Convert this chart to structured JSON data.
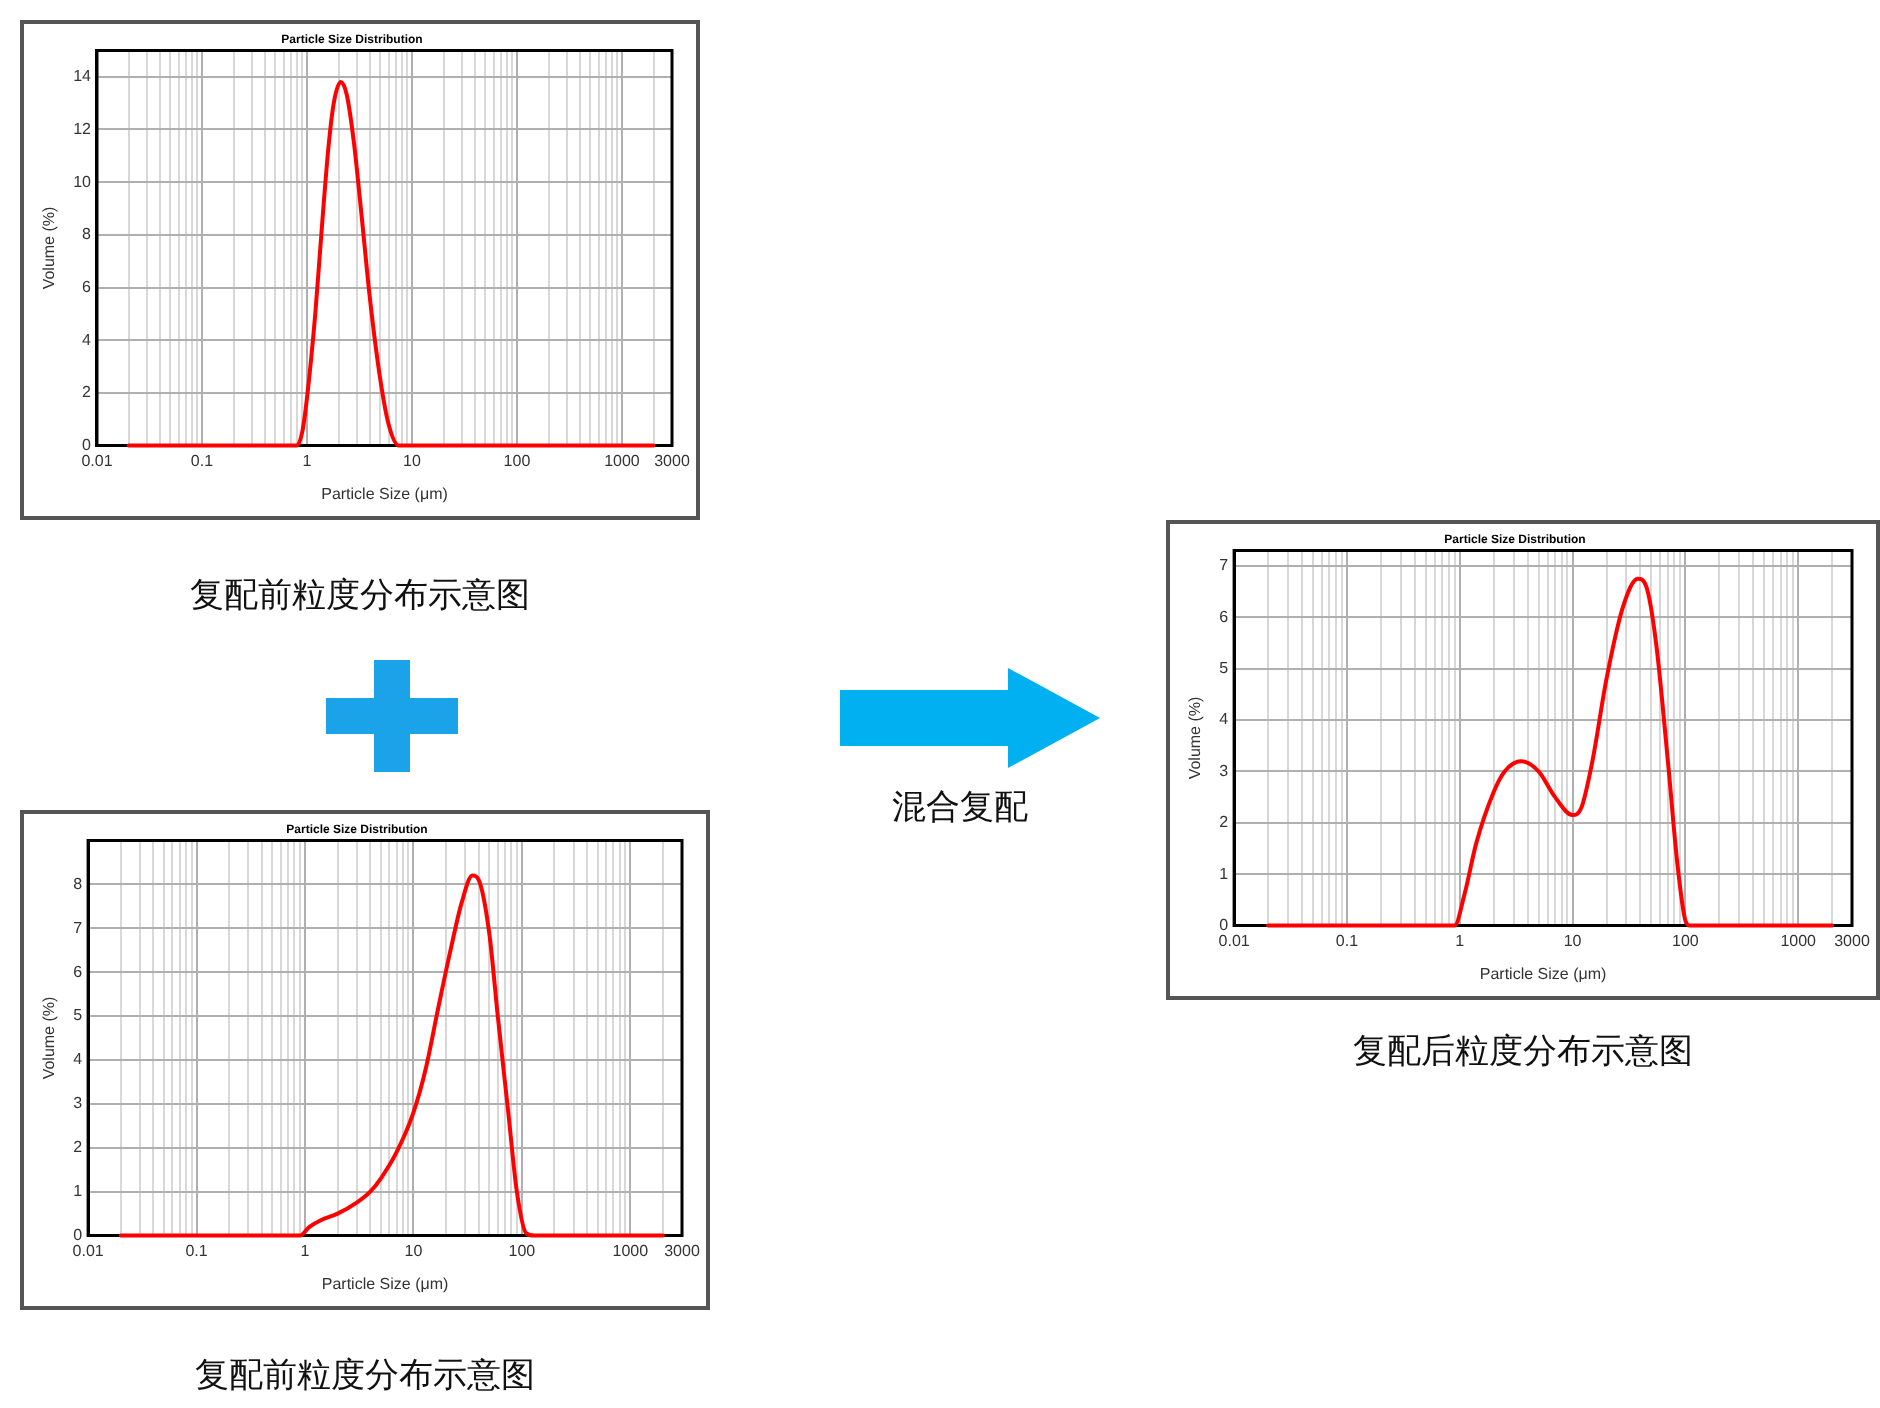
{
  "chart_data": [
    {
      "type": "line",
      "title": "Particle Size Distribution",
      "xlabel": "Particle Size (μm)",
      "ylabel": "Volume (%)",
      "log": "x",
      "grid": true,
      "legend": false,
      "marker": "none",
      "line_style": "solid",
      "xlim": [
        0.01,
        3000
      ],
      "ylim": [
        0,
        15
      ],
      "yticks": [
        0,
        2,
        4,
        6,
        8,
        10,
        12,
        14
      ],
      "xticks": [
        0.01,
        {
          "value": 0.02,
          "label": null
        },
        {
          "value": 0.03,
          "label": null
        },
        {
          "value": 0.04,
          "label": null
        },
        {
          "value": 0.05,
          "label": null
        },
        {
          "value": 0.06,
          "label": null
        },
        {
          "value": 0.07,
          "label": null
        },
        {
          "value": 0.08,
          "label": null
        },
        {
          "value": 0.09,
          "label": null
        },
        0.1,
        {
          "value": 0.2,
          "label": null
        },
        {
          "value": 0.3,
          "label": null
        },
        {
          "value": 0.4,
          "label": null
        },
        {
          "value": 0.5,
          "label": null
        },
        {
          "value": 0.6,
          "label": null
        },
        {
          "value": 0.7,
          "label": null
        },
        {
          "value": 0.8,
          "label": null
        },
        {
          "value": 0.9,
          "label": null
        },
        1,
        {
          "value": 2,
          "label": null
        },
        {
          "value": 3,
          "label": null
        },
        {
          "value": 4,
          "label": null
        },
        {
          "value": 5,
          "label": null
        },
        {
          "value": 6,
          "label": null
        },
        {
          "value": 7,
          "label": null
        },
        {
          "value": 8,
          "label": null
        },
        {
          "value": 9,
          "label": null
        },
        10,
        {
          "value": 20,
          "label": null
        },
        {
          "value": 30,
          "label": null
        },
        {
          "value": 40,
          "label": null
        },
        {
          "value": 50,
          "label": null
        },
        {
          "value": 60,
          "label": null
        },
        {
          "value": 70,
          "label": null
        },
        {
          "value": 80,
          "label": null
        },
        {
          "value": 90,
          "label": null
        },
        100,
        {
          "value": 200,
          "label": null
        },
        {
          "value": 300,
          "label": null
        },
        {
          "value": 400,
          "label": null
        },
        {
          "value": 500,
          "label": null
        },
        {
          "value": 600,
          "label": null
        },
        {
          "value": 700,
          "label": null
        },
        {
          "value": 800,
          "label": null
        },
        {
          "value": 900,
          "label": null
        },
        1000,
        {
          "value": 2000,
          "label": null
        },
        3000
      ],
      "annotations": [
        "复配前粒度分布示意图"
      ],
      "series": [
        {
          "color": "#ff0000",
          "x": [
            0.02,
            0.8,
            0.9,
            1.0,
            1.2,
            1.4,
            1.6,
            1.8,
            2.1,
            2.4,
            2.8,
            3.3,
            4,
            5,
            6,
            7.5,
            2000
          ],
          "values": [
            0,
            0,
            0.5,
            1.8,
            5,
            8.5,
            11.3,
            13,
            13.8,
            13.3,
            11.5,
            8.8,
            5.5,
            2.5,
            0.8,
            0,
            0
          ]
        }
      ]
    },
    {
      "type": "line",
      "title": "Particle Size Distribution",
      "xlabel": "Particle Size (μm)",
      "ylabel": "Volume (%)",
      "log": "x",
      "grid": true,
      "legend": false,
      "marker": "none",
      "line_style": "solid",
      "xlim": [
        0.01,
        3000
      ],
      "ylim": [
        0,
        9
      ],
      "yticks": [
        0,
        1,
        2,
        3,
        4,
        5,
        6,
        7,
        8
      ],
      "xticks": [
        0.01,
        {
          "value": 0.02,
          "label": null
        },
        {
          "value": 0.03,
          "label": null
        },
        {
          "value": 0.04,
          "label": null
        },
        {
          "value": 0.05,
          "label": null
        },
        {
          "value": 0.06,
          "label": null
        },
        {
          "value": 0.07,
          "label": null
        },
        {
          "value": 0.08,
          "label": null
        },
        {
          "value": 0.09,
          "label": null
        },
        0.1,
        {
          "value": 0.2,
          "label": null
        },
        {
          "value": 0.3,
          "label": null
        },
        {
          "value": 0.4,
          "label": null
        },
        {
          "value": 0.5,
          "label": null
        },
        {
          "value": 0.6,
          "label": null
        },
        {
          "value": 0.7,
          "label": null
        },
        {
          "value": 0.8,
          "label": null
        },
        {
          "value": 0.9,
          "label": null
        },
        1,
        {
          "value": 2,
          "label": null
        },
        {
          "value": 3,
          "label": null
        },
        {
          "value": 4,
          "label": null
        },
        {
          "value": 5,
          "label": null
        },
        {
          "value": 6,
          "label": null
        },
        {
          "value": 7,
          "label": null
        },
        {
          "value": 8,
          "label": null
        },
        {
          "value": 9,
          "label": null
        },
        10,
        {
          "value": 20,
          "label": null
        },
        {
          "value": 30,
          "label": null
        },
        {
          "value": 40,
          "label": null
        },
        {
          "value": 50,
          "label": null
        },
        {
          "value": 60,
          "label": null
        },
        {
          "value": 70,
          "label": null
        },
        {
          "value": 80,
          "label": null
        },
        {
          "value": 90,
          "label": null
        },
        100,
        {
          "value": 200,
          "label": null
        },
        {
          "value": 300,
          "label": null
        },
        {
          "value": 400,
          "label": null
        },
        {
          "value": 500,
          "label": null
        },
        {
          "value": 600,
          "label": null
        },
        {
          "value": 700,
          "label": null
        },
        {
          "value": 800,
          "label": null
        },
        {
          "value": 900,
          "label": null
        },
        1000,
        {
          "value": 2000,
          "label": null
        },
        3000
      ],
      "annotations": [
        "复配前粒度分布示意图"
      ],
      "series": [
        {
          "color": "#ff0000",
          "x": [
            0.02,
            0.9,
            1.1,
            1.4,
            2,
            3,
            4,
            5,
            7,
            10,
            13,
            17,
            22,
            28,
            35,
            40,
            50,
            60,
            75,
            90,
            110,
            130,
            2000
          ],
          "values": [
            0,
            0,
            0.2,
            0.35,
            0.5,
            0.75,
            1.0,
            1.3,
            1.9,
            2.8,
            3.8,
            5.2,
            6.5,
            7.6,
            8.2,
            8.1,
            6.9,
            5,
            2.8,
            1.0,
            0.05,
            0,
            0
          ]
        }
      ]
    },
    {
      "type": "line",
      "title": "Particle Size Distribution",
      "xlabel": "Particle Size (μm)",
      "ylabel": "Volume (%)",
      "log": "x",
      "grid": true,
      "legend": false,
      "marker": "none",
      "line_style": "solid",
      "xlim": [
        0.01,
        3000
      ],
      "ylim": [
        0,
        7.3
      ],
      "yticks": [
        0,
        1,
        2,
        3,
        4,
        5,
        6,
        7
      ],
      "xticks": [
        0.01,
        {
          "value": 0.02,
          "label": null
        },
        {
          "value": 0.03,
          "label": null
        },
        {
          "value": 0.04,
          "label": null
        },
        {
          "value": 0.05,
          "label": null
        },
        {
          "value": 0.06,
          "label": null
        },
        {
          "value": 0.07,
          "label": null
        },
        {
          "value": 0.08,
          "label": null
        },
        {
          "value": 0.09,
          "label": null
        },
        0.1,
        {
          "value": 0.2,
          "label": null
        },
        {
          "value": 0.3,
          "label": null
        },
        {
          "value": 0.4,
          "label": null
        },
        {
          "value": 0.5,
          "label": null
        },
        {
          "value": 0.6,
          "label": null
        },
        {
          "value": 0.7,
          "label": null
        },
        {
          "value": 0.8,
          "label": null
        },
        {
          "value": 0.9,
          "label": null
        },
        1,
        {
          "value": 2,
          "label": null
        },
        {
          "value": 3,
          "label": null
        },
        {
          "value": 4,
          "label": null
        },
        {
          "value": 5,
          "label": null
        },
        {
          "value": 6,
          "label": null
        },
        {
          "value": 7,
          "label": null
        },
        {
          "value": 8,
          "label": null
        },
        {
          "value": 9,
          "label": null
        },
        10,
        {
          "value": 20,
          "label": null
        },
        {
          "value": 30,
          "label": null
        },
        {
          "value": 40,
          "label": null
        },
        {
          "value": 50,
          "label": null
        },
        {
          "value": 60,
          "label": null
        },
        {
          "value": 70,
          "label": null
        },
        {
          "value": 80,
          "label": null
        },
        {
          "value": 90,
          "label": null
        },
        100,
        {
          "value": 200,
          "label": null
        },
        {
          "value": 300,
          "label": null
        },
        {
          "value": 400,
          "label": null
        },
        {
          "value": 500,
          "label": null
        },
        {
          "value": 600,
          "label": null
        },
        {
          "value": 700,
          "label": null
        },
        {
          "value": 800,
          "label": null
        },
        {
          "value": 900,
          "label": null
        },
        1000,
        {
          "value": 2000,
          "label": null
        },
        3000
      ],
      "annotations": [
        "复配后粒度分布示意图",
        "混合复配"
      ],
      "series": [
        {
          "color": "#ff0000",
          "x": [
            0.02,
            0.9,
            1.1,
            1.4,
            2,
            2.5,
            3.5,
            5,
            7,
            10,
            12,
            15,
            20,
            28,
            38,
            45,
            55,
            70,
            85,
            100,
            110,
            2000
          ],
          "values": [
            0,
            0,
            0.6,
            1.6,
            2.6,
            3.0,
            3.2,
            3.0,
            2.5,
            2.15,
            2.3,
            3.2,
            4.8,
            6.2,
            6.75,
            6.6,
            5.5,
            3.2,
            1.2,
            0.1,
            0,
            0
          ]
        }
      ]
    }
  ]
}
